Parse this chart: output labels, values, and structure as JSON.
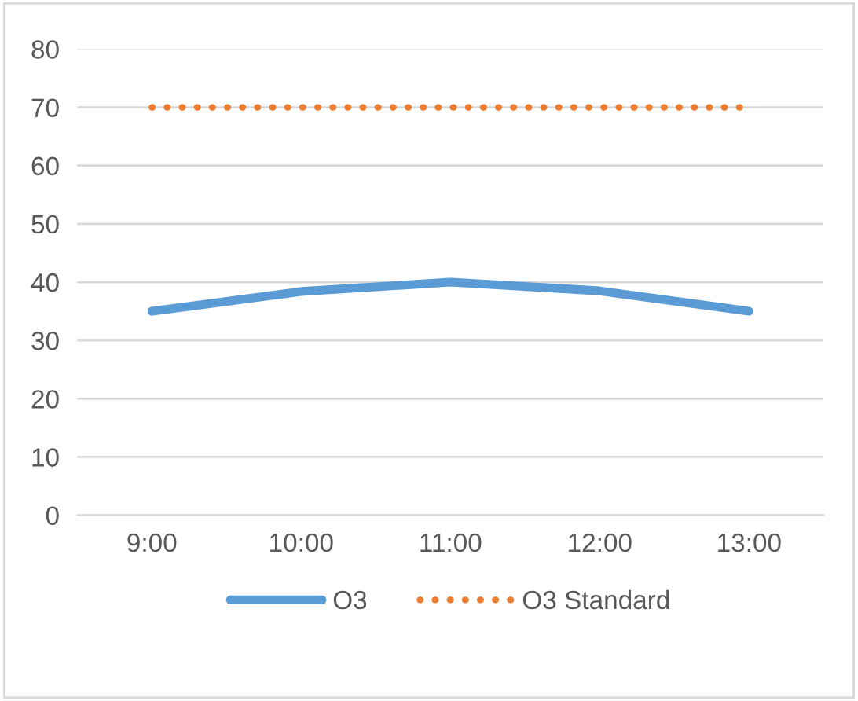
{
  "chart_data": {
    "type": "line",
    "categories": [
      "9:00",
      "10:00",
      "11:00",
      "12:00",
      "13:00"
    ],
    "series": [
      {
        "name": "O3",
        "color": "#5b9bd5",
        "values": [
          35,
          38.4,
          40,
          38.5,
          35
        ],
        "line_style": "solid"
      },
      {
        "name": "O3 Standard",
        "color": "#ed7d31",
        "values": [
          70,
          70,
          70,
          70,
          70
        ],
        "line_style": "dotted"
      }
    ],
    "ylim": [
      0,
      80
    ],
    "yticks": [
      0,
      10,
      20,
      30,
      40,
      50,
      60,
      70,
      80
    ],
    "grid": "y",
    "legend": "bottom"
  }
}
